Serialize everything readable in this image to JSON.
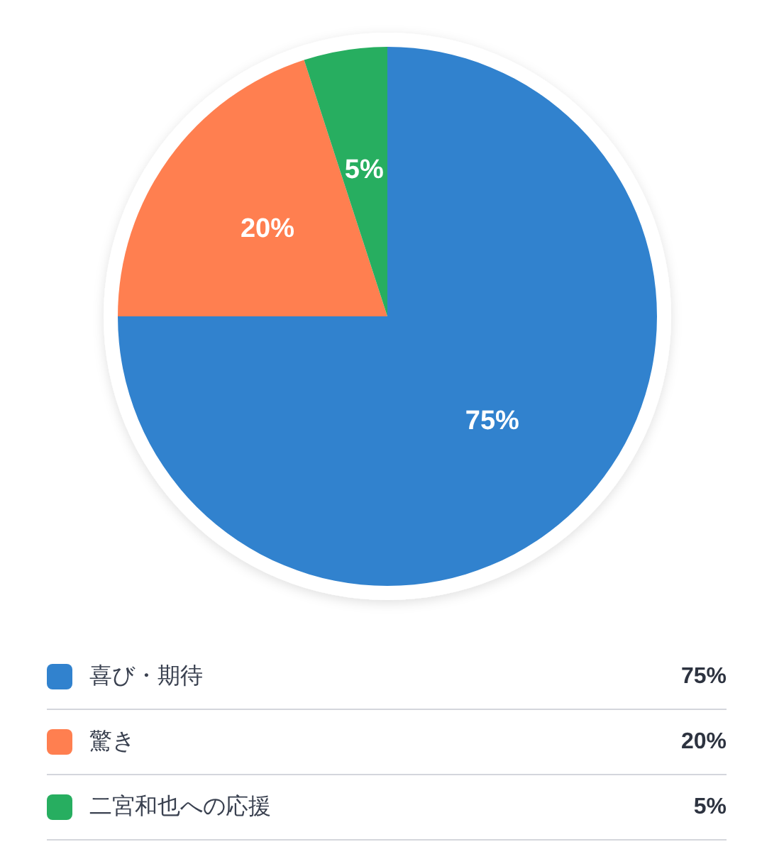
{
  "chart_data": {
    "type": "pie",
    "categories": [
      "喜び・期待",
      "驚き",
      "二宮和也への応援"
    ],
    "values": [
      75,
      20,
      5
    ],
    "colors": [
      "#3182ce",
      "#ff7f50",
      "#27ae60"
    ],
    "value_labels": [
      "75%",
      "20%",
      "5%"
    ],
    "legend": "bottom"
  }
}
